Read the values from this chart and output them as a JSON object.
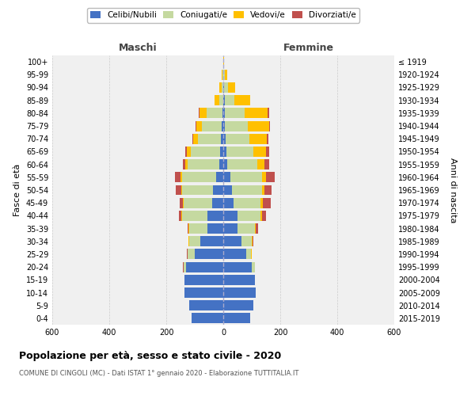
{
  "age_groups": [
    "0-4",
    "5-9",
    "10-14",
    "15-19",
    "20-24",
    "25-29",
    "30-34",
    "35-39",
    "40-44",
    "45-49",
    "50-54",
    "55-59",
    "60-64",
    "65-69",
    "70-74",
    "75-79",
    "80-84",
    "85-89",
    "90-94",
    "95-99",
    "100+"
  ],
  "birth_years": [
    "2015-2019",
    "2010-2014",
    "2005-2009",
    "2000-2004",
    "1995-1999",
    "1990-1994",
    "1985-1989",
    "1980-1984",
    "1975-1979",
    "1970-1974",
    "1965-1969",
    "1960-1964",
    "1955-1959",
    "1950-1954",
    "1945-1949",
    "1940-1944",
    "1935-1939",
    "1930-1934",
    "1925-1929",
    "1920-1924",
    "≤ 1919"
  ],
  "male": {
    "celibi": [
      110,
      120,
      135,
      135,
      130,
      100,
      80,
      55,
      55,
      40,
      35,
      25,
      15,
      10,
      8,
      5,
      2,
      0,
      0,
      0,
      0
    ],
    "coniugati": [
      0,
      0,
      0,
      0,
      10,
      25,
      40,
      65,
      90,
      100,
      110,
      120,
      110,
      105,
      80,
      70,
      55,
      15,
      5,
      2,
      0
    ],
    "vedovi": [
      0,
      0,
      0,
      0,
      0,
      1,
      1,
      1,
      2,
      2,
      3,
      5,
      8,
      12,
      18,
      20,
      25,
      15,
      8,
      3,
      0
    ],
    "divorziati": [
      0,
      0,
      0,
      0,
      1,
      1,
      2,
      5,
      8,
      10,
      20,
      20,
      8,
      5,
      3,
      3,
      3,
      0,
      0,
      0,
      0
    ]
  },
  "female": {
    "nubili": [
      95,
      105,
      115,
      110,
      100,
      80,
      65,
      50,
      50,
      35,
      30,
      25,
      15,
      10,
      8,
      5,
      5,
      5,
      2,
      1,
      0
    ],
    "coniugate": [
      0,
      0,
      0,
      0,
      10,
      18,
      35,
      60,
      80,
      95,
      105,
      110,
      105,
      95,
      85,
      80,
      70,
      35,
      15,
      5,
      1
    ],
    "vedove": [
      0,
      0,
      0,
      0,
      0,
      1,
      2,
      3,
      5,
      8,
      10,
      15,
      25,
      45,
      60,
      75,
      80,
      55,
      25,
      8,
      1
    ],
    "divorziate": [
      0,
      0,
      0,
      0,
      0,
      1,
      3,
      8,
      15,
      30,
      25,
      30,
      15,
      10,
      5,
      5,
      5,
      0,
      0,
      0,
      0
    ]
  },
  "colors": {
    "celibi": "#4472c4",
    "coniugati": "#c5d9a0",
    "vedovi": "#ffc000",
    "divorziati": "#c0504d"
  },
  "title": "Popolazione per età, sesso e stato civile - 2020",
  "subtitle": "COMUNE DI CINGOLI (MC) - Dati ISTAT 1° gennaio 2020 - Elaborazione TUTTITALIA.IT",
  "ylabel_left": "Fasce di età",
  "ylabel_right": "Anni di nascita",
  "xlabel_left": "Maschi",
  "xlabel_right": "Femmine",
  "xlim": 600,
  "bg_color": "#ffffff",
  "plot_bg": "#f0f0f0"
}
